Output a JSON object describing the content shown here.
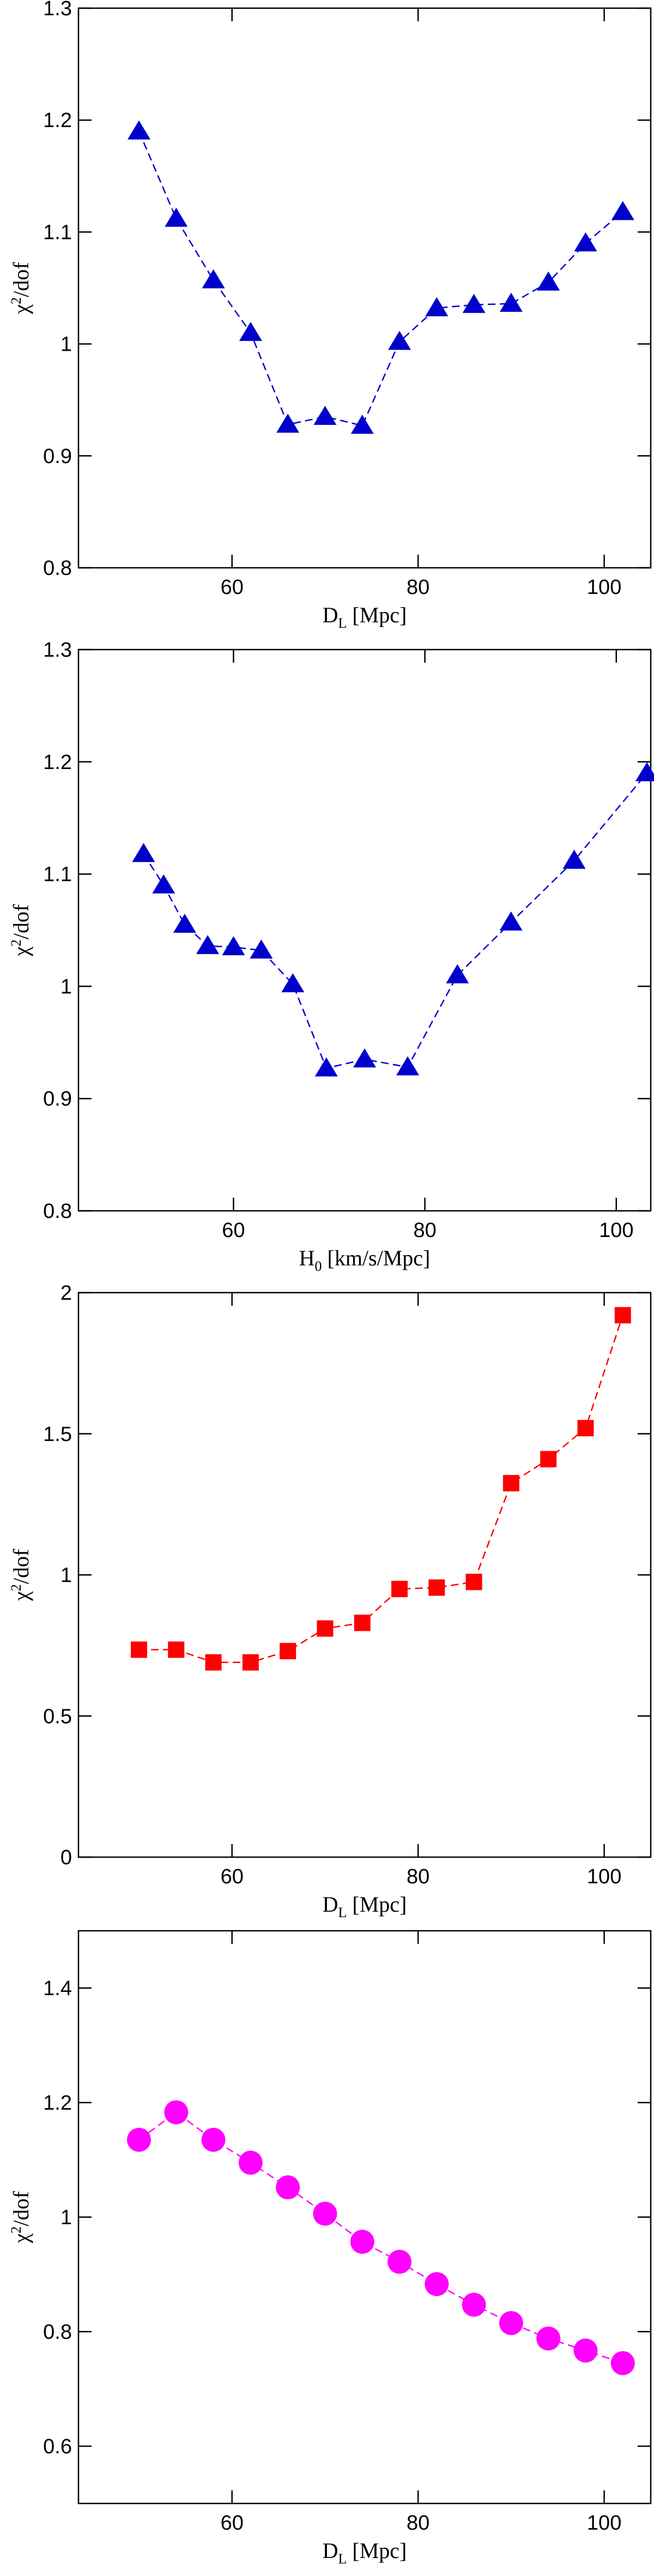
{
  "chart_data": [
    {
      "type": "line",
      "marker": "triangle",
      "color": "#0000cc",
      "xlabel": [
        "D",
        "L",
        " [Mpc]"
      ],
      "ylabel": [
        "χ",
        "2",
        "/dof"
      ],
      "x": [
        50,
        54,
        58,
        62,
        66,
        70,
        74,
        78,
        82,
        86,
        90,
        94,
        98,
        102
      ],
      "values": [
        1.19,
        1.112,
        1.057,
        1.01,
        0.928,
        0.935,
        0.927,
        1.002,
        1.032,
        1.035,
        1.036,
        1.055,
        1.09,
        1.118
      ],
      "xlim": [
        43.5,
        105
      ],
      "xticks": [
        60,
        80,
        100
      ],
      "ylim": [
        0.8,
        1.3
      ],
      "yticks": [
        0.8,
        0.9,
        1,
        1.1,
        1.2,
        1.3
      ]
    },
    {
      "type": "line",
      "marker": "triangle",
      "color": "#0000cc",
      "xlabel": [
        "H",
        "0",
        " [km/s/Mpc]"
      ],
      "ylabel": [
        "χ",
        "2",
        "/dof"
      ],
      "x": [
        50.6,
        52.7,
        54.9,
        57.3,
        60.0,
        62.9,
        66.2,
        69.7,
        73.7,
        78.2,
        83.4,
        89.0,
        95.6,
        103.2
      ],
      "values": [
        1.118,
        1.09,
        1.055,
        1.036,
        1.035,
        1.032,
        1.002,
        0.927,
        0.935,
        0.928,
        1.01,
        1.057,
        1.112,
        1.19
      ],
      "xlim": [
        43.8,
        103.6
      ],
      "xticks": [
        60,
        80,
        100
      ],
      "ylim": [
        0.8,
        1.3
      ],
      "yticks": [
        0.8,
        0.9,
        1,
        1.1,
        1.2,
        1.3
      ]
    },
    {
      "type": "line",
      "marker": "square",
      "color": "#ff0000",
      "xlabel": [
        "D",
        "L",
        " [Mpc]"
      ],
      "ylabel": [
        "χ",
        "2",
        "/dof"
      ],
      "x": [
        50,
        54,
        58,
        62,
        66,
        70,
        74,
        78,
        82,
        86,
        90,
        94,
        98,
        102
      ],
      "values": [
        0.735,
        0.735,
        0.69,
        0.69,
        0.73,
        0.81,
        0.83,
        0.95,
        0.955,
        0.975,
        1.325,
        1.41,
        1.52,
        1.92
      ],
      "xlim": [
        43.5,
        105
      ],
      "xticks": [
        60,
        80,
        100
      ],
      "ylim": [
        0,
        2
      ],
      "yticks": [
        0,
        0.5,
        1,
        1.5,
        2
      ]
    },
    {
      "type": "line",
      "marker": "circle",
      "color": "#ff00ff",
      "xlabel": [
        "D",
        "L",
        " [Mpc]"
      ],
      "ylabel": [
        "χ",
        "2",
        "/dof"
      ],
      "x": [
        50,
        54,
        58,
        62,
        66,
        70,
        74,
        78,
        82,
        86,
        90,
        94,
        98,
        102
      ],
      "values": [
        1.135,
        1.183,
        1.135,
        1.095,
        1.052,
        1.006,
        0.957,
        0.922,
        0.883,
        0.847,
        0.815,
        0.788,
        0.767,
        0.745
      ],
      "xlim": [
        43.5,
        105
      ],
      "xticks": [
        60,
        80,
        100
      ],
      "ylim": [
        0.5,
        1.5
      ],
      "yticks": [
        0.6,
        0.8,
        1,
        1.2,
        1.4
      ]
    }
  ]
}
